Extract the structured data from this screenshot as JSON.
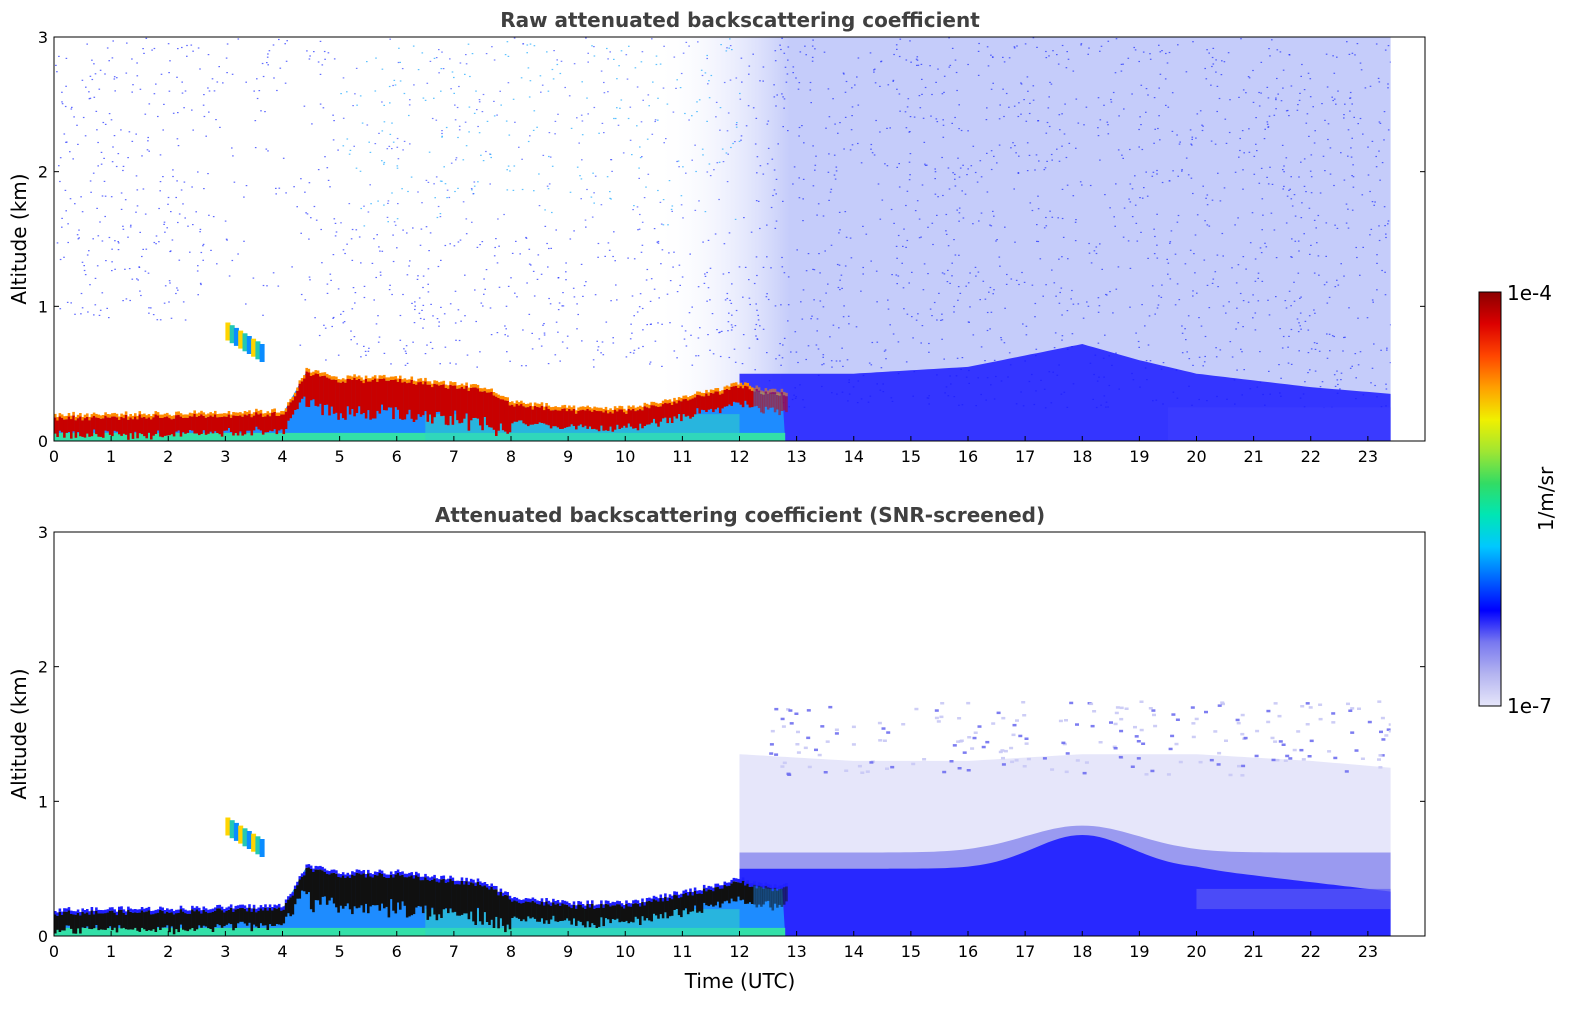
{
  "chart_data": [
    {
      "type": "heatmap",
      "title": "Raw attenuated backscattering coefficient",
      "xlabel": "",
      "ylabel": "Altitude (km)",
      "xlim": [
        0,
        24
      ],
      "ylim": [
        0,
        3
      ],
      "xticks": [
        "0",
        "1",
        "2",
        "3",
        "4",
        "5",
        "6",
        "7",
        "8",
        "9",
        "10",
        "11",
        "12",
        "13",
        "14",
        "15",
        "16",
        "17",
        "18",
        "19",
        "20",
        "21",
        "22",
        "23"
      ],
      "yticks": [
        "0",
        "1",
        "2",
        "3"
      ],
      "data_time_range": [
        0,
        23.4
      ],
      "features": [
        {
          "name": "boundary layer top (high backscatter)",
          "time": [
            0,
            2,
            4,
            4.4,
            5,
            6,
            7,
            7.5,
            8,
            9,
            10,
            11,
            12,
            12.5
          ],
          "altitude": [
            0.17,
            0.18,
            0.2,
            0.5,
            0.45,
            0.45,
            0.4,
            0.38,
            0.27,
            0.22,
            0.22,
            0.3,
            0.4,
            0.35
          ]
        },
        {
          "name": "aerosol layer height",
          "time": [
            12,
            14,
            16,
            18,
            19,
            20,
            21,
            22,
            23.4
          ],
          "altitude": [
            0.5,
            0.5,
            0.55,
            0.72,
            0.6,
            0.5,
            0.45,
            0.4,
            0.35
          ]
        },
        {
          "name": "isolated cloud",
          "time": [
            3,
            3.7
          ],
          "altitude": [
            0.7,
            0.9
          ]
        }
      ]
    },
    {
      "type": "heatmap",
      "title": "Attenuated backscattering coefficient (SNR-screened)",
      "xlabel": "Time (UTC)",
      "ylabel": "Altitude (km)",
      "xlim": [
        0,
        24
      ],
      "ylim": [
        0,
        3
      ],
      "xticks": [
        "0",
        "1",
        "2",
        "3",
        "4",
        "5",
        "6",
        "7",
        "8",
        "9",
        "10",
        "11",
        "12",
        "13",
        "14",
        "15",
        "16",
        "17",
        "18",
        "19",
        "20",
        "21",
        "22",
        "23"
      ],
      "yticks": [
        "0",
        "1",
        "2",
        "3"
      ],
      "data_time_range": [
        0,
        23.4
      ],
      "features": [
        {
          "name": "boundary layer top (high backscatter)",
          "time": [
            0,
            2,
            4,
            4.4,
            5,
            6,
            7,
            7.5,
            8,
            9,
            10,
            11,
            12,
            12.5
          ],
          "altitude": [
            0.17,
            0.18,
            0.2,
            0.5,
            0.45,
            0.45,
            0.4,
            0.38,
            0.27,
            0.22,
            0.22,
            0.3,
            0.4,
            0.35
          ]
        },
        {
          "name": "screened aerosol top",
          "time": [
            12,
            14,
            16,
            18,
            20,
            22,
            23.4
          ],
          "altitude": [
            1.35,
            1.3,
            1.3,
            1.35,
            1.35,
            1.3,
            1.25
          ]
        }
      ]
    }
  ],
  "colorbar": {
    "label": "1/m/sr",
    "max_label": "1e-4",
    "min_label": "1e-7",
    "colormap": [
      "#e6e6fa",
      "#b4b4f0",
      "#7878f0",
      "#0000ff",
      "#0066ff",
      "#00c8ff",
      "#00e6b4",
      "#32dc64",
      "#a0e632",
      "#f0f000",
      "#ffa000",
      "#ff4600",
      "#dc0000",
      "#8b0000"
    ]
  }
}
